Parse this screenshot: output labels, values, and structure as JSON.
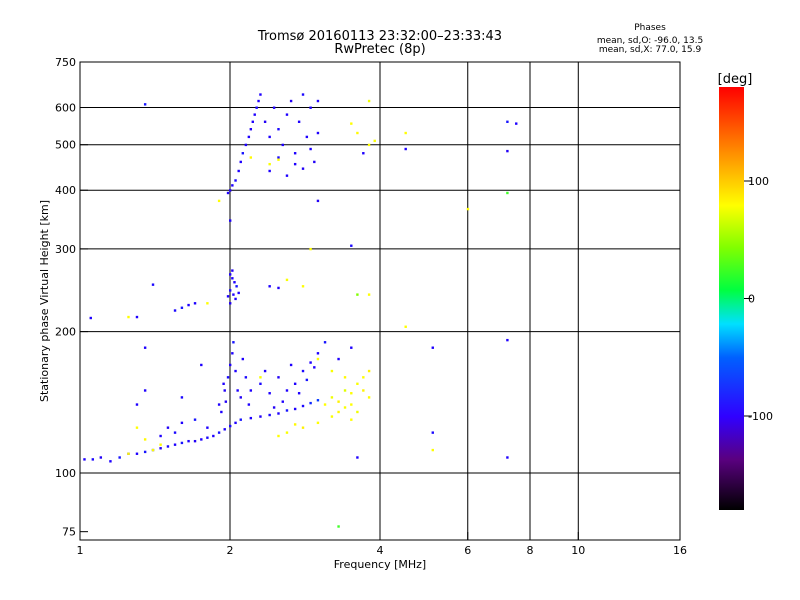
{
  "chart_data": {
    "type": "scatter",
    "title": "Tromsø 20160113 23:32:00–23:33:43",
    "subtitle": "RwPretec (8p)",
    "stats": {
      "heading": "Phases",
      "line1": "mean, sd,O: -96.0, 13.5",
      "line2": "mean, sd,X:  77.0, 15.9"
    },
    "xlabel": "Frequency [MHz]",
    "ylabel": "Stationary phase Virtual Height [km]",
    "x_scale": "log",
    "y_scale": "log",
    "xlim": [
      1,
      16
    ],
    "ylim": [
      72,
      750
    ],
    "x_gridlines": [
      2,
      4,
      6,
      8,
      10
    ],
    "x_ticklabels": [
      {
        "v": 1,
        "label": "1"
      },
      {
        "v": 2,
        "label": "2"
      },
      {
        "v": 4,
        "label": "4"
      },
      {
        "v": 6,
        "label": "6"
      },
      {
        "v": 8,
        "label": "8"
      },
      {
        "v": 10,
        "label": "10"
      },
      {
        "v": 16,
        "label": "16"
      }
    ],
    "y_gridlines": [
      100,
      200,
      300,
      400,
      500,
      600
    ],
    "y_ticklabels": [
      {
        "v": 75,
        "label": "75"
      },
      {
        "v": 100,
        "label": "100"
      },
      {
        "v": 200,
        "label": "200"
      },
      {
        "v": 300,
        "label": "300"
      },
      {
        "v": 400,
        "label": "400"
      },
      {
        "v": 500,
        "label": "500"
      },
      {
        "v": 600,
        "label": "600"
      },
      {
        "v": 750,
        "label": "750"
      }
    ],
    "grid": true,
    "colorbar": {
      "title": "[deg]",
      "range": [
        -180,
        180
      ],
      "ticks": [
        {
          "v": 100,
          "label": "100"
        },
        {
          "v": 0,
          "label": "0"
        },
        {
          "v": -100,
          "label": "-100"
        }
      ]
    },
    "series": [
      {
        "points": [
          [
            1.02,
            107,
            -110
          ],
          [
            1.06,
            107,
            -108
          ],
          [
            1.1,
            108,
            -112
          ],
          [
            1.15,
            106,
            -110
          ],
          [
            1.2,
            108,
            -105
          ],
          [
            1.25,
            110,
            -100
          ],
          [
            1.3,
            110,
            -110
          ],
          [
            1.35,
            111,
            -105
          ],
          [
            1.4,
            112,
            -110
          ],
          [
            1.45,
            113,
            -112
          ],
          [
            1.5,
            114,
            -108
          ],
          [
            1.55,
            115,
            -110
          ],
          [
            1.6,
            116,
            -105
          ],
          [
            1.65,
            117,
            -110
          ],
          [
            1.7,
            117,
            -112
          ],
          [
            1.75,
            118,
            -110
          ],
          [
            1.8,
            119,
            -108
          ],
          [
            1.85,
            120,
            -110
          ],
          [
            1.9,
            122,
            -105
          ],
          [
            1.95,
            124,
            -110
          ],
          [
            2.0,
            126,
            -108
          ],
          [
            2.05,
            128,
            -110
          ],
          [
            2.1,
            130,
            -105
          ],
          [
            2.2,
            131,
            -110
          ],
          [
            2.3,
            132,
            -112
          ],
          [
            2.4,
            133,
            -108
          ],
          [
            2.5,
            134,
            -110
          ],
          [
            2.6,
            136,
            -105
          ],
          [
            2.7,
            137,
            -110
          ],
          [
            2.8,
            139,
            -108
          ],
          [
            2.9,
            141,
            -100
          ],
          [
            3.0,
            143,
            -95
          ],
          [
            1.45,
            120,
            -110
          ],
          [
            1.5,
            125,
            -112
          ],
          [
            1.55,
            122,
            -108
          ],
          [
            1.6,
            128,
            -110
          ],
          [
            1.7,
            130,
            -105
          ],
          [
            1.8,
            125,
            -110
          ],
          [
            1.9,
            140,
            -110
          ],
          [
            1.95,
            150,
            -112
          ],
          [
            1.98,
            160,
            -108
          ],
          [
            2.0,
            170,
            -110
          ],
          [
            2.02,
            180,
            -110
          ],
          [
            2.03,
            190,
            -105
          ],
          [
            2.05,
            165,
            -110
          ],
          [
            2.07,
            150,
            -110
          ],
          [
            2.1,
            145,
            -112
          ],
          [
            2.12,
            175,
            -110
          ],
          [
            2.15,
            160,
            -108
          ],
          [
            1.92,
            135,
            -110
          ],
          [
            1.94,
            155,
            -110
          ],
          [
            1.96,
            142,
            -112
          ],
          [
            2.18,
            140,
            -110
          ],
          [
            2.2,
            150,
            -110
          ],
          [
            2.3,
            155,
            -108
          ],
          [
            2.35,
            165,
            -110
          ],
          [
            2.4,
            148,
            -110
          ],
          [
            2.5,
            160,
            -112
          ],
          [
            2.6,
            150,
            -110
          ],
          [
            2.7,
            155,
            -110
          ],
          [
            2.8,
            165,
            -108
          ],
          [
            2.9,
            172,
            -110
          ],
          [
            3.0,
            180,
            -110
          ],
          [
            3.1,
            190,
            -105
          ],
          [
            2.65,
            170,
            -110
          ],
          [
            2.55,
            142,
            -110
          ],
          [
            2.45,
            138,
            -112
          ],
          [
            2.75,
            148,
            -110
          ],
          [
            2.85,
            158,
            -105
          ],
          [
            2.95,
            168,
            -110
          ],
          [
            1.3,
            140,
            -110
          ],
          [
            1.35,
            150,
            -110
          ],
          [
            1.6,
            145,
            -108
          ],
          [
            1.75,
            170,
            -110
          ],
          [
            2.0,
            265,
            -110
          ],
          [
            2.02,
            270,
            -112
          ],
          [
            2.04,
            255,
            -110
          ],
          [
            2.0,
            245,
            -108
          ],
          [
            2.03,
            240,
            -110
          ],
          [
            2.05,
            235,
            -110
          ],
          [
            2.0,
            230,
            -112
          ],
          [
            2.02,
            260,
            -110
          ],
          [
            2.06,
            250,
            -105
          ],
          [
            2.08,
            242,
            -110
          ],
          [
            1.98,
            238,
            -110
          ],
          [
            1.6,
            225,
            -105
          ],
          [
            1.65,
            228,
            -110
          ],
          [
            1.7,
            230,
            -110
          ],
          [
            1.55,
            222,
            -108
          ],
          [
            2.4,
            250,
            -110
          ],
          [
            2.5,
            248,
            -112
          ],
          [
            1.3,
            215,
            -110
          ],
          [
            1.05,
            214,
            -110
          ],
          [
            1.4,
            252,
            -108
          ],
          [
            1.98,
            395,
            -110
          ],
          [
            2.0,
            400,
            -112
          ],
          [
            2.02,
            410,
            -110
          ],
          [
            2.05,
            420,
            -108
          ],
          [
            2.08,
            440,
            -110
          ],
          [
            2.1,
            460,
            -110
          ],
          [
            2.12,
            480,
            -105
          ],
          [
            2.15,
            500,
            -110
          ],
          [
            2.18,
            520,
            -110
          ],
          [
            2.2,
            540,
            -112
          ],
          [
            2.22,
            560,
            -110
          ],
          [
            2.24,
            580,
            -110
          ],
          [
            2.26,
            600,
            -108
          ],
          [
            2.28,
            620,
            -110
          ],
          [
            2.3,
            640,
            -110
          ],
          [
            2.35,
            560,
            -112
          ],
          [
            2.4,
            520,
            -110
          ],
          [
            2.45,
            600,
            -110
          ],
          [
            2.5,
            540,
            -108
          ],
          [
            2.55,
            500,
            -110
          ],
          [
            2.6,
            580,
            -110
          ],
          [
            2.65,
            620,
            -112
          ],
          [
            2.7,
            480,
            -110
          ],
          [
            2.75,
            560,
            -110
          ],
          [
            2.8,
            640,
            -108
          ],
          [
            2.85,
            520,
            -110
          ],
          [
            2.9,
            600,
            -110
          ],
          [
            2.95,
            460,
            -112
          ],
          [
            3.0,
            620,
            -110
          ],
          [
            2.4,
            440,
            -110
          ],
          [
            2.5,
            470,
            -108
          ],
          [
            2.6,
            430,
            -110
          ],
          [
            2.7,
            455,
            -110
          ],
          [
            2.8,
            445,
            -112
          ],
          [
            2.9,
            490,
            -110
          ],
          [
            3.0,
            530,
            -110
          ],
          [
            1.35,
            610,
            -105
          ],
          [
            1.35,
            185,
            -110
          ],
          [
            2.0,
            345,
            -110
          ],
          [
            3.5,
            305,
            -108
          ],
          [
            3.0,
            380,
            -112
          ],
          [
            3.7,
            480,
            -110
          ],
          [
            4.5,
            490,
            -110
          ],
          [
            5.1,
            185,
            -110
          ],
          [
            7.2,
            560,
            -105
          ],
          [
            7.5,
            555,
            -110
          ],
          [
            7.2,
            485,
            -112
          ],
          [
            7.2,
            192,
            -110
          ],
          [
            7.2,
            108,
            -110
          ],
          [
            5.1,
            122,
            -108
          ],
          [
            3.6,
            108,
            -110
          ],
          [
            3.3,
            175,
            -110
          ],
          [
            3.5,
            185,
            -110
          ]
        ]
      },
      {
        "points": [
          [
            3.1,
            140,
            80
          ],
          [
            3.2,
            145,
            75
          ],
          [
            3.3,
            142,
            85
          ],
          [
            3.4,
            150,
            70
          ],
          [
            3.5,
            148,
            80
          ],
          [
            3.6,
            155,
            78
          ],
          [
            3.7,
            150,
            85
          ],
          [
            3.8,
            145,
            80
          ],
          [
            3.3,
            135,
            82
          ],
          [
            3.4,
            138,
            78
          ],
          [
            3.5,
            140,
            80
          ],
          [
            3.6,
            135,
            75
          ],
          [
            3.7,
            160,
            80
          ],
          [
            3.8,
            165,
            85
          ],
          [
            3.5,
            130,
            80
          ],
          [
            3.2,
            132,
            78
          ],
          [
            3.0,
            128,
            80
          ],
          [
            2.8,
            125,
            85
          ],
          [
            2.6,
            122,
            78
          ],
          [
            2.5,
            120,
            80
          ],
          [
            2.7,
            127,
            82
          ],
          [
            1.3,
            125,
            80
          ],
          [
            1.35,
            118,
            82
          ],
          [
            1.4,
            112,
            78
          ],
          [
            1.45,
            115,
            80
          ],
          [
            1.25,
            110,
            85
          ],
          [
            3.0,
            175,
            80
          ],
          [
            3.2,
            165,
            78
          ],
          [
            3.4,
            160,
            82
          ],
          [
            3.8,
            620,
            75
          ],
          [
            3.5,
            555,
            80
          ],
          [
            3.6,
            530,
            82
          ],
          [
            3.9,
            510,
            78
          ],
          [
            3.8,
            500,
            80
          ],
          [
            4.5,
            530,
            80
          ],
          [
            6.0,
            365,
            80
          ],
          [
            7.2,
            395,
            20
          ],
          [
            3.8,
            240,
            80
          ],
          [
            4.5,
            205,
            80
          ],
          [
            5.1,
            112,
            80
          ],
          [
            3.3,
            77,
            20
          ],
          [
            2.5,
            465,
            80
          ],
          [
            2.2,
            470,
            82
          ],
          [
            2.4,
            455,
            78
          ],
          [
            2.9,
            300,
            80
          ],
          [
            2.6,
            258,
            78
          ],
          [
            2.8,
            250,
            80
          ],
          [
            1.8,
            230,
            80
          ],
          [
            1.25,
            215,
            80
          ],
          [
            1.9,
            380,
            80
          ],
          [
            2.3,
            160,
            78
          ],
          [
            3.6,
            240,
            40
          ]
        ]
      }
    ]
  }
}
